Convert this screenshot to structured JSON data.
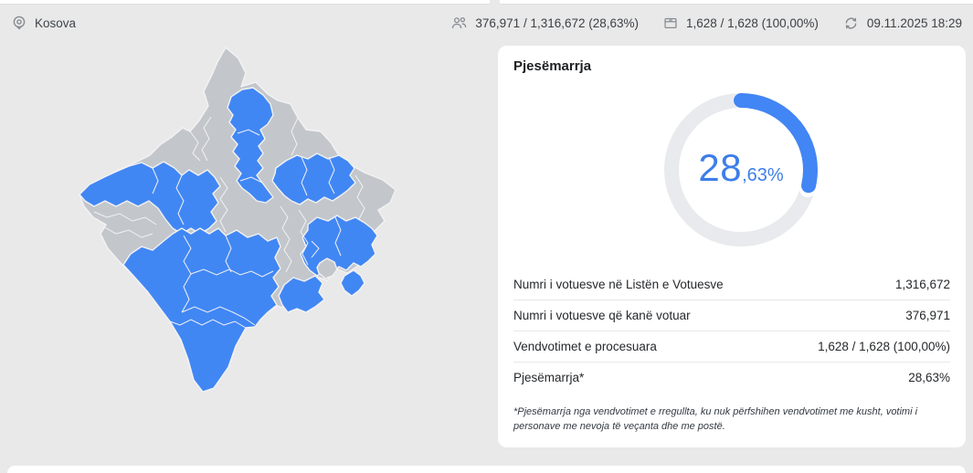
{
  "page": {
    "background": "#e9e9e9"
  },
  "topbar": {
    "location_label": "Kosova",
    "stats": [
      {
        "icon": "voters-icon",
        "text": "376,971 / 1,316,672 (28,63%)"
      },
      {
        "icon": "ballot-box-icon",
        "text": "1,628 / 1,628 (100,00%)"
      },
      {
        "icon": "refresh-icon",
        "text": "09.11.2025 18:29"
      }
    ]
  },
  "map": {
    "highlight_color": "#4187f4",
    "default_color": "#c3c7cb",
    "border_color": "#f2f2f4",
    "regions": [
      {
        "id": "country",
        "highlighted": false
      },
      {
        "id": "region-west",
        "highlighted": true
      },
      {
        "id": "region-mitrovica",
        "highlighted": true
      },
      {
        "id": "region-center-east",
        "highlighted": true
      },
      {
        "id": "region-southwest",
        "highlighted": true
      },
      {
        "id": "region-south-central",
        "highlighted": true
      },
      {
        "id": "region-east-group",
        "highlighted": true
      },
      {
        "id": "region-east-pocket",
        "highlighted": false
      },
      {
        "id": "region-southeast-small",
        "highlighted": true
      }
    ]
  },
  "participation_card": {
    "title": "Pjesëmarrja",
    "donut": {
      "value": 28.63,
      "percent_int": "28",
      "percent_frac": ",63%",
      "arc_color": "#4285f4",
      "track_color": "#e8eaed"
    },
    "rows": [
      {
        "label": "Numri i votuesve në Listën e Votuesve",
        "value": "1,316,672"
      },
      {
        "label": "Numri i votuesve që kanë votuar",
        "value": "376,971"
      },
      {
        "label": "Vendvotimet e procesuara",
        "value": "1,628 / 1,628 (100,00%)"
      },
      {
        "label": "Pjesëmarrja*",
        "value": "28,63%"
      }
    ],
    "footnote": "*Pjesëmarrja nga vendvotimet e rregullta, ku nuk përfshihen vendvotimet me kusht, votimi i personave me nevoja të veçanta dhe me postë."
  }
}
